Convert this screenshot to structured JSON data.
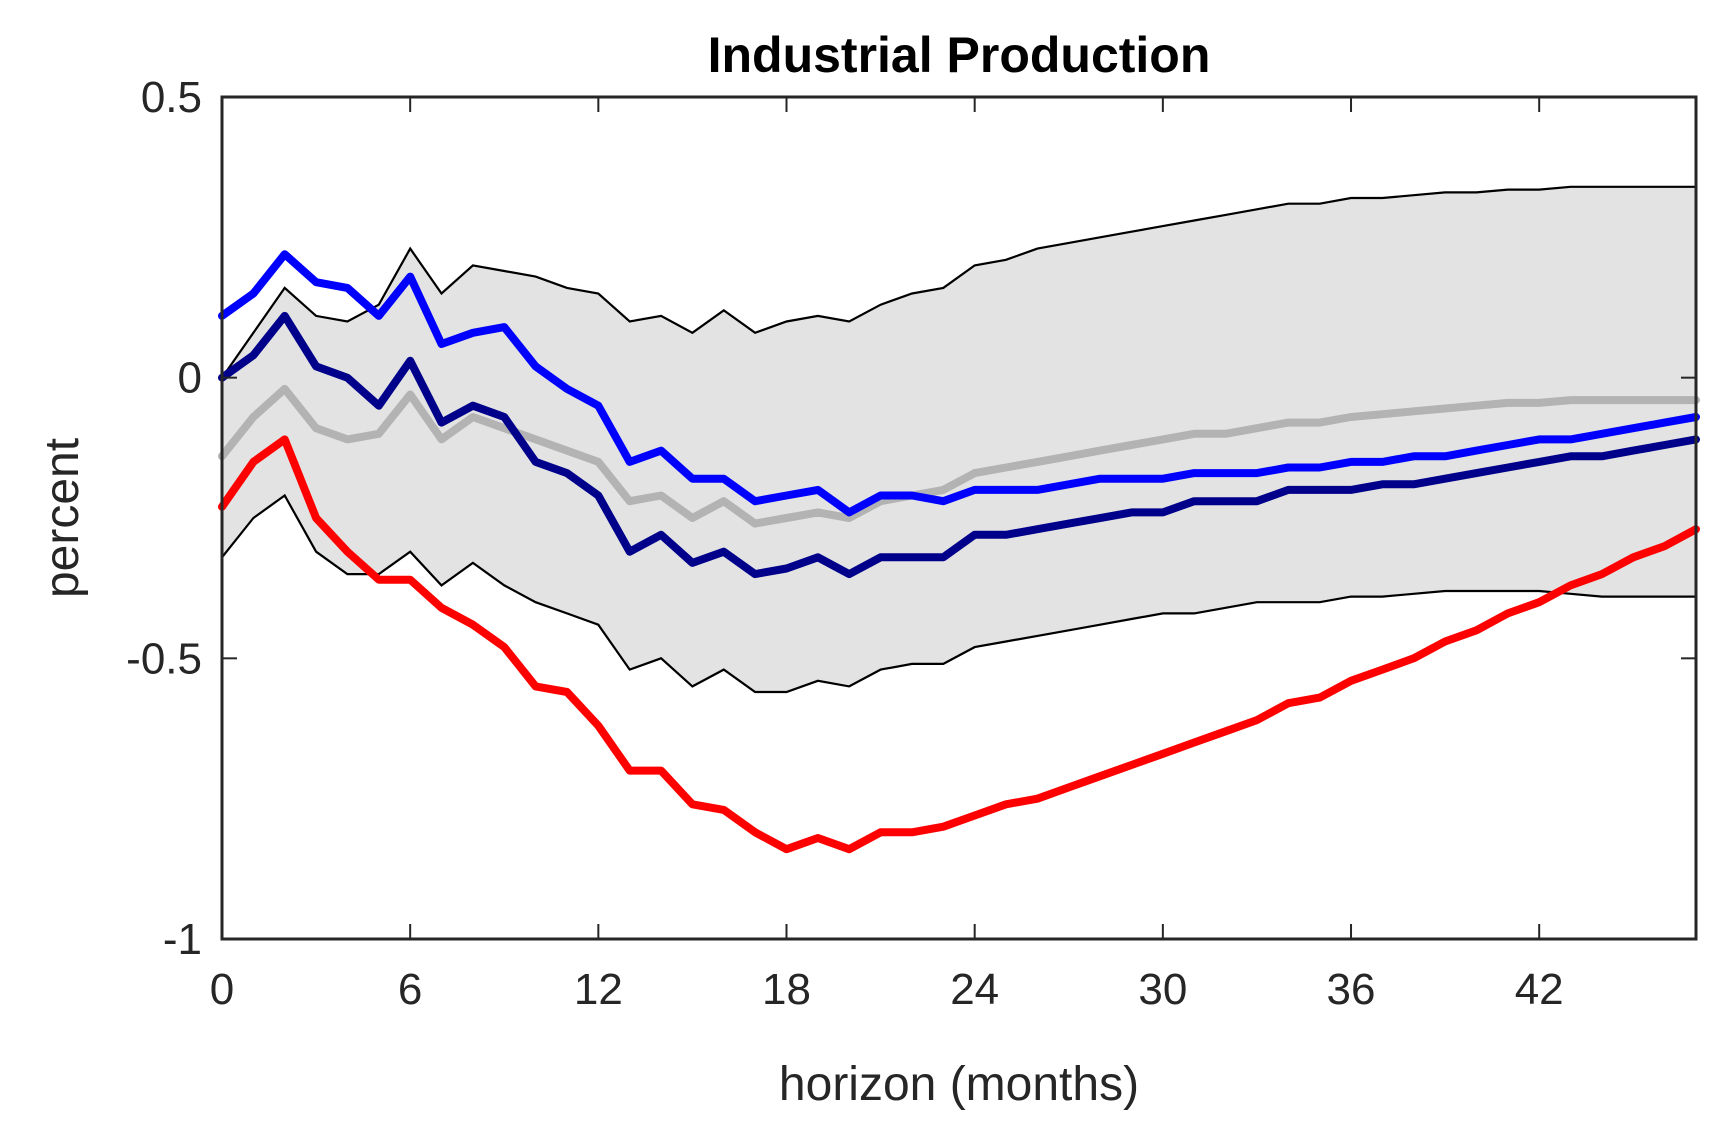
{
  "chart_data": {
    "type": "line",
    "title": "Industrial Production",
    "xlabel": "horizon (months)",
    "ylabel": "percent",
    "xlim": [
      0,
      47
    ],
    "ylim": [
      -1,
      0.5
    ],
    "xticks": [
      0,
      6,
      12,
      18,
      24,
      30,
      36,
      42
    ],
    "yticks": [
      -1,
      -0.5,
      0,
      0.5
    ],
    "ytick_labels": [
      "-1",
      "-0.5",
      "0",
      "0.5"
    ],
    "x": [
      0,
      1,
      2,
      3,
      4,
      5,
      6,
      7,
      8,
      9,
      10,
      11,
      12,
      13,
      14,
      15,
      16,
      17,
      18,
      19,
      20,
      21,
      22,
      23,
      24,
      25,
      26,
      27,
      28,
      29,
      30,
      31,
      32,
      33,
      34,
      35,
      36,
      37,
      38,
      39,
      40,
      41,
      42,
      43,
      44,
      45,
      46,
      47
    ],
    "band": {
      "upper": [
        0.0,
        0.08,
        0.16,
        0.11,
        0.1,
        0.13,
        0.23,
        0.15,
        0.2,
        0.19,
        0.18,
        0.16,
        0.15,
        0.1,
        0.11,
        0.08,
        0.12,
        0.08,
        0.1,
        0.11,
        0.1,
        0.13,
        0.15,
        0.16,
        0.2,
        0.21,
        0.23,
        0.24,
        0.25,
        0.26,
        0.27,
        0.28,
        0.29,
        0.3,
        0.31,
        0.31,
        0.32,
        0.32,
        0.325,
        0.33,
        0.33,
        0.335,
        0.335,
        0.34,
        0.34,
        0.34,
        0.34,
        0.34
      ],
      "lower": [
        -0.32,
        -0.25,
        -0.21,
        -0.31,
        -0.35,
        -0.35,
        -0.31,
        -0.37,
        -0.33,
        -0.37,
        -0.4,
        -0.42,
        -0.44,
        -0.52,
        -0.5,
        -0.55,
        -0.52,
        -0.56,
        -0.56,
        -0.54,
        -0.55,
        -0.52,
        -0.51,
        -0.51,
        -0.48,
        -0.47,
        -0.46,
        -0.45,
        -0.44,
        -0.43,
        -0.42,
        -0.42,
        -0.41,
        -0.4,
        -0.4,
        -0.4,
        -0.39,
        -0.39,
        -0.385,
        -0.38,
        -0.38,
        -0.38,
        -0.38,
        -0.385,
        -0.39,
        -0.39,
        -0.39,
        -0.39
      ],
      "fill": "#e3e3e3",
      "edge": "#000000"
    },
    "series": [
      {
        "color": "#b3b3b3",
        "values": [
          -0.14,
          -0.07,
          -0.02,
          -0.09,
          -0.11,
          -0.1,
          -0.03,
          -0.11,
          -0.07,
          -0.09,
          -0.11,
          -0.13,
          -0.15,
          -0.22,
          -0.21,
          -0.25,
          -0.22,
          -0.26,
          -0.25,
          -0.24,
          -0.25,
          -0.22,
          -0.21,
          -0.2,
          -0.17,
          -0.16,
          -0.15,
          -0.14,
          -0.13,
          -0.12,
          -0.11,
          -0.1,
          -0.1,
          -0.09,
          -0.08,
          -0.08,
          -0.07,
          -0.065,
          -0.06,
          -0.055,
          -0.05,
          -0.045,
          -0.045,
          -0.04,
          -0.04,
          -0.04,
          -0.04,
          -0.04
        ]
      },
      {
        "color": "#0000ff",
        "values": [
          0.11,
          0.15,
          0.22,
          0.17,
          0.16,
          0.11,
          0.18,
          0.06,
          0.08,
          0.09,
          0.02,
          -0.02,
          -0.05,
          -0.15,
          -0.13,
          -0.18,
          -0.18,
          -0.22,
          -0.21,
          -0.2,
          -0.24,
          -0.21,
          -0.21,
          -0.22,
          -0.2,
          -0.2,
          -0.2,
          -0.19,
          -0.18,
          -0.18,
          -0.18,
          -0.17,
          -0.17,
          -0.17,
          -0.16,
          -0.16,
          -0.15,
          -0.15,
          -0.14,
          -0.14,
          -0.13,
          -0.12,
          -0.11,
          -0.11,
          -0.1,
          -0.09,
          -0.08,
          -0.07
        ]
      },
      {
        "color": "#00008b",
        "values": [
          0.0,
          0.04,
          0.11,
          0.02,
          0.0,
          -0.05,
          0.03,
          -0.08,
          -0.05,
          -0.07,
          -0.15,
          -0.17,
          -0.21,
          -0.31,
          -0.28,
          -0.33,
          -0.31,
          -0.35,
          -0.34,
          -0.32,
          -0.35,
          -0.32,
          -0.32,
          -0.32,
          -0.28,
          -0.28,
          -0.27,
          -0.26,
          -0.25,
          -0.24,
          -0.24,
          -0.22,
          -0.22,
          -0.22,
          -0.2,
          -0.2,
          -0.2,
          -0.19,
          -0.19,
          -0.18,
          -0.17,
          -0.16,
          -0.15,
          -0.14,
          -0.14,
          -0.13,
          -0.12,
          -0.11
        ]
      },
      {
        "color": "#ff0000",
        "values": [
          -0.23,
          -0.15,
          -0.11,
          -0.25,
          -0.31,
          -0.36,
          -0.36,
          -0.41,
          -0.44,
          -0.48,
          -0.55,
          -0.56,
          -0.62,
          -0.7,
          -0.7,
          -0.76,
          -0.77,
          -0.81,
          -0.84,
          -0.82,
          -0.84,
          -0.81,
          -0.81,
          -0.8,
          -0.78,
          -0.76,
          -0.75,
          -0.73,
          -0.71,
          -0.69,
          -0.67,
          -0.65,
          -0.63,
          -0.61,
          -0.58,
          -0.57,
          -0.54,
          -0.52,
          -0.5,
          -0.47,
          -0.45,
          -0.42,
          -0.4,
          -0.37,
          -0.35,
          -0.32,
          -0.3,
          -0.27
        ]
      }
    ],
    "grid": false,
    "legend": "none"
  }
}
